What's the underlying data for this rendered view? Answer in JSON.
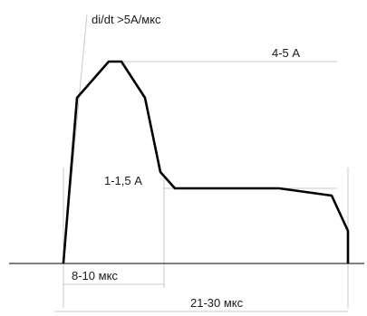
{
  "labels": {
    "slope": "di/dt >5А/мкс",
    "peak_current": "4-5 А",
    "base_current": "1-1,5 А",
    "peak_duration": "8-10 мкс",
    "total_duration": "21-30 мкс"
  }
}
